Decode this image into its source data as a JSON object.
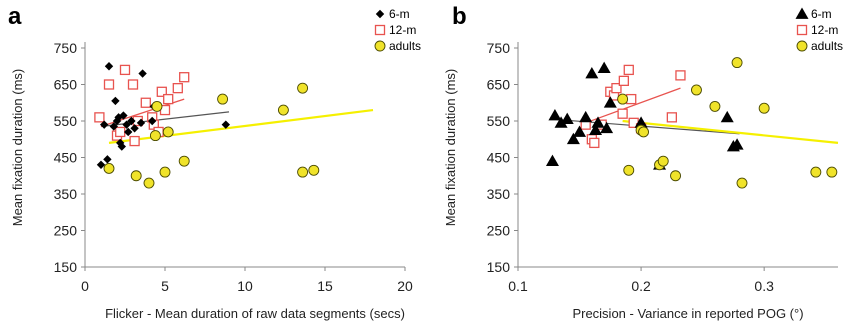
{
  "colors": {
    "infant6": "#000000",
    "infant12": "#e8534f",
    "adult_fill": "#f0e32a",
    "adult_stroke": "#4a4a00",
    "trend_6m": "#555555",
    "trend_12m": "#e8534f",
    "trend_adults": "#f5f000"
  },
  "chart_data": [
    {
      "panel": "a",
      "type": "scatter",
      "xlabel": "Flicker - Mean duration of raw data segments (secs)",
      "ylabel": "Mean fixation duration (ms)",
      "xlim": [
        0,
        20
      ],
      "ylim": [
        150,
        750
      ],
      "xticks": [
        "0",
        "5",
        "10",
        "15",
        "20"
      ],
      "yticks": [
        "150",
        "250",
        "350",
        "450",
        "550",
        "650",
        "750"
      ],
      "legend": {
        "position": "top-right"
      },
      "series": [
        {
          "name": "6-m",
          "marker": "diamond",
          "points": [
            [
              1.0,
              430
            ],
            [
              1.4,
              445
            ],
            [
              1.5,
              700
            ],
            [
              1.8,
              535
            ],
            [
              1.9,
              605
            ],
            [
              1.2,
              540
            ],
            [
              2.0,
              550
            ],
            [
              2.1,
              560
            ],
            [
              2.2,
              490
            ],
            [
              2.3,
              480
            ],
            [
              2.4,
              565
            ],
            [
              2.6,
              540
            ],
            [
              2.7,
              520
            ],
            [
              2.9,
              550
            ],
            [
              3.1,
              530
            ],
            [
              3.5,
              545
            ],
            [
              3.6,
              680
            ],
            [
              4.2,
              550
            ],
            [
              8.8,
              540
            ],
            [
              4.3,
              590
            ]
          ],
          "trend": [
            [
              1.0,
              535
            ],
            [
              9.0,
              575
            ]
          ]
        },
        {
          "name": "12-m",
          "marker": "square-open",
          "points": [
            [
              0.9,
              560
            ],
            [
              1.5,
              650
            ],
            [
              2.0,
              510
            ],
            [
              2.5,
              690
            ],
            [
              3.0,
              650
            ],
            [
              3.1,
              495
            ],
            [
              3.3,
              550
            ],
            [
              4.2,
              560
            ],
            [
              4.3,
              540
            ],
            [
              4.6,
              520
            ],
            [
              4.8,
              630
            ],
            [
              5.0,
              580
            ],
            [
              5.2,
              610
            ],
            [
              5.8,
              640
            ],
            [
              6.2,
              670
            ],
            [
              2.2,
              520
            ],
            [
              3.8,
              600
            ]
          ],
          "trend": [
            [
              1.0,
              535
            ],
            [
              6.2,
              610
            ]
          ]
        },
        {
          "name": "adults",
          "marker": "circle",
          "points": [
            [
              1.5,
              420
            ],
            [
              3.2,
              400
            ],
            [
              4.0,
              380
            ],
            [
              4.4,
              510
            ],
            [
              4.5,
              590
            ],
            [
              5.0,
              410
            ],
            [
              5.2,
              520
            ],
            [
              6.2,
              440
            ],
            [
              8.6,
              610
            ],
            [
              12.4,
              580
            ],
            [
              13.6,
              640
            ],
            [
              13.6,
              410
            ],
            [
              14.3,
              415
            ]
          ],
          "trend": [
            [
              1.5,
              490
            ],
            [
              18.0,
              580
            ]
          ]
        }
      ]
    },
    {
      "panel": "b",
      "type": "scatter",
      "xlabel": "Precision - Variance in reported POG (°)",
      "ylabel": "Mean fixation duration (ms)",
      "xlim": [
        0.1,
        0.36
      ],
      "ylim": [
        150,
        750
      ],
      "xticks": [
        "0.1",
        "0.2",
        "0.3"
      ],
      "yticks": [
        "150",
        "250",
        "350",
        "450",
        "550",
        "650",
        "750"
      ],
      "legend": {
        "position": "top-right"
      },
      "series": [
        {
          "name": "6-m",
          "marker": "triangle",
          "points": [
            [
              0.128,
              440
            ],
            [
              0.13,
              565
            ],
            [
              0.135,
              545
            ],
            [
              0.14,
              555
            ],
            [
              0.145,
              500
            ],
            [
              0.15,
              520
            ],
            [
              0.155,
              560
            ],
            [
              0.16,
              680
            ],
            [
              0.163,
              525
            ],
            [
              0.165,
              545
            ],
            [
              0.17,
              695
            ],
            [
              0.172,
              530
            ],
            [
              0.175,
              600
            ],
            [
              0.2,
              545
            ],
            [
              0.215,
              430
            ],
            [
              0.27,
              560
            ],
            [
              0.275,
              480
            ],
            [
              0.278,
              485
            ]
          ],
          "trend": [
            [
              0.128,
              555
            ],
            [
              0.28,
              515
            ]
          ]
        },
        {
          "name": "12-m",
          "marker": "square-open",
          "points": [
            [
              0.155,
              540
            ],
            [
              0.16,
              500
            ],
            [
              0.162,
              490
            ],
            [
              0.168,
              540
            ],
            [
              0.175,
              630
            ],
            [
              0.178,
              620
            ],
            [
              0.18,
              640
            ],
            [
              0.185,
              570
            ],
            [
              0.186,
              660
            ],
            [
              0.19,
              690
            ],
            [
              0.192,
              610
            ],
            [
              0.194,
              545
            ],
            [
              0.2,
              530
            ],
            [
              0.225,
              560
            ],
            [
              0.232,
              675
            ]
          ],
          "trend": [
            [
              0.155,
              545
            ],
            [
              0.232,
              640
            ]
          ]
        },
        {
          "name": "adults",
          "marker": "circle",
          "points": [
            [
              0.185,
              610
            ],
            [
              0.19,
              415
            ],
            [
              0.2,
              525
            ],
            [
              0.202,
              520
            ],
            [
              0.215,
              430
            ],
            [
              0.218,
              440
            ],
            [
              0.228,
              400
            ],
            [
              0.245,
              635
            ],
            [
              0.26,
              590
            ],
            [
              0.278,
              710
            ],
            [
              0.282,
              380
            ],
            [
              0.3,
              585
            ],
            [
              0.342,
              410
            ],
            [
              0.355,
              410
            ]
          ],
          "trend": [
            [
              0.185,
              550
            ],
            [
              0.36,
              490
            ]
          ]
        }
      ]
    }
  ]
}
